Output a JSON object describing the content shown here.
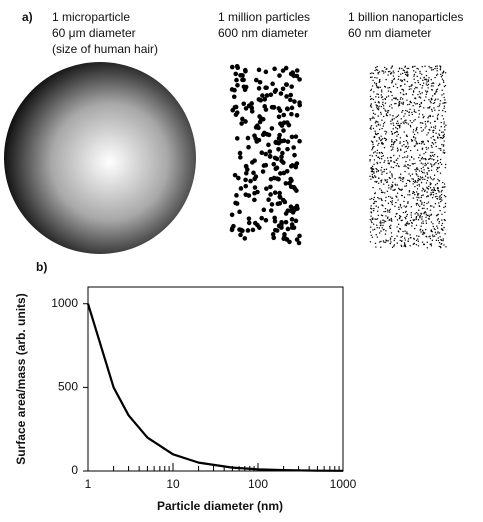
{
  "panel_a": {
    "label": "a)",
    "items": [
      {
        "lines": [
          "1 microparticle",
          "60 μm diameter",
          "(size of human hair)"
        ]
      },
      {
        "lines": [
          "1 million particles",
          "600 nm diameter"
        ]
      },
      {
        "lines": [
          "1 billion nanoparticles",
          "60 nm diameter"
        ]
      }
    ]
  },
  "chart_data": {
    "type": "line",
    "label": "b)",
    "x_label": "Particle diameter (nm)",
    "y_label": "Surface area/mass (arb. units)",
    "x": [
      1,
      2,
      3,
      5,
      10,
      20,
      50,
      100,
      200,
      500,
      1000
    ],
    "values": [
      1000,
      500,
      333,
      200,
      100,
      50,
      20,
      10,
      5,
      2,
      1
    ],
    "color": "#000000",
    "xscale": "log",
    "xlim": [
      1,
      1000
    ],
    "xticks": [
      1,
      10,
      100,
      1000
    ],
    "xminor": [
      2,
      3,
      4,
      5,
      6,
      7,
      8,
      9,
      20,
      30,
      40,
      50,
      60,
      70,
      80,
      90,
      200,
      300,
      400,
      500,
      600,
      700,
      800,
      900
    ],
    "ylim": [
      0,
      1100
    ],
    "yticks": [
      0,
      500,
      1000
    ]
  }
}
